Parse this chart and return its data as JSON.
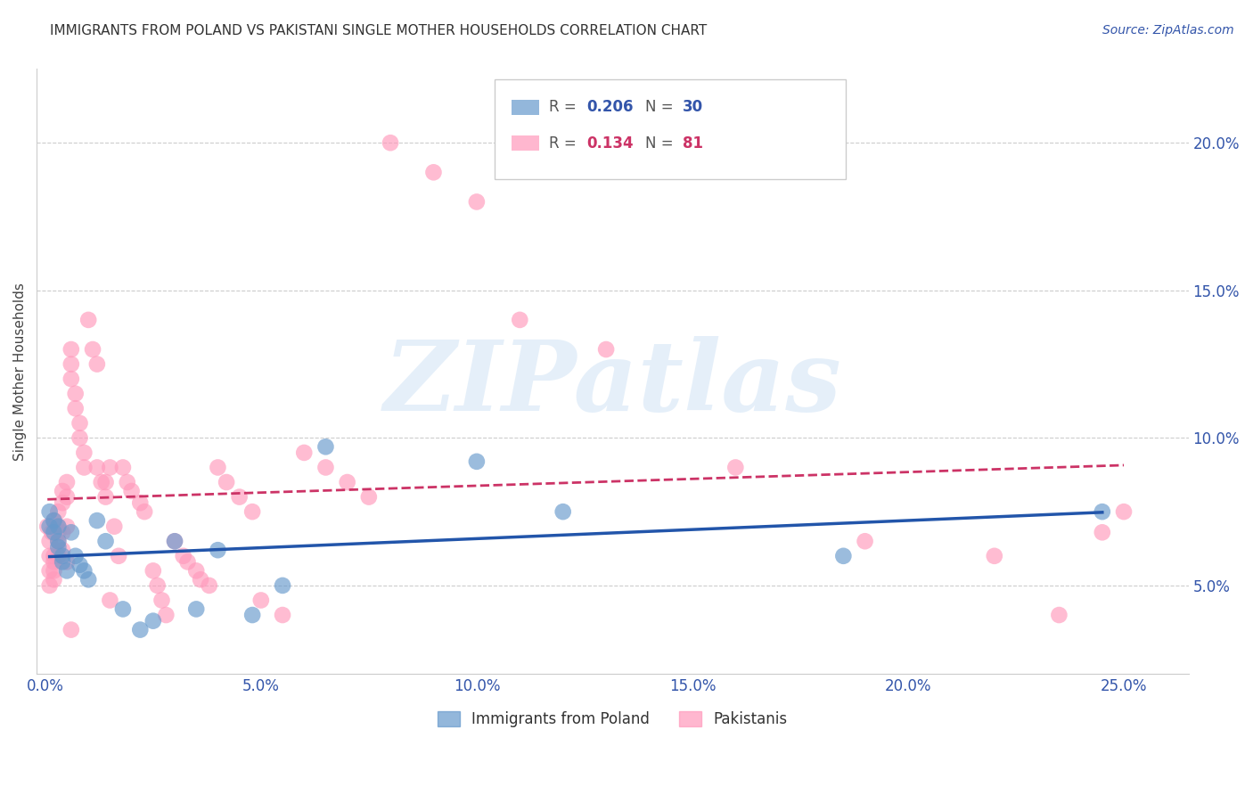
{
  "title": "IMMIGRANTS FROM POLAND VS PAKISTANI SINGLE MOTHER HOUSEHOLDS CORRELATION CHART",
  "source": "Source: ZipAtlas.com",
  "ylabel": "Single Mother Households",
  "xlabel_ticks": [
    0.0,
    0.05,
    0.1,
    0.15,
    0.2,
    0.25
  ],
  "xlabel_labels": [
    "0.0%",
    "5.0%",
    "10.0%",
    "15.0%",
    "20.0%",
    "25.0%"
  ],
  "ylabel_ticks": [
    0.05,
    0.1,
    0.15,
    0.2
  ],
  "ylabel_labels": [
    "5.0%",
    "10.0%",
    "15.0%",
    "20.0%"
  ],
  "xlim": [
    -0.002,
    0.265
  ],
  "ylim": [
    0.02,
    0.225
  ],
  "R_blue": "0.206",
  "N_blue": "30",
  "R_pink": "0.134",
  "N_pink": "81",
  "legend_label_blue": "Immigrants from Poland",
  "legend_label_pink": "Pakistanis",
  "blue_color": "#6699cc",
  "pink_color": "#ff99bb",
  "trendline_blue_color": "#2255aa",
  "trendline_pink_color": "#cc3366",
  "watermark": "ZIPatlas",
  "blue_scatter_x": [
    0.001,
    0.001,
    0.002,
    0.002,
    0.003,
    0.003,
    0.003,
    0.004,
    0.004,
    0.005,
    0.006,
    0.007,
    0.008,
    0.009,
    0.01,
    0.012,
    0.014,
    0.018,
    0.022,
    0.025,
    0.03,
    0.035,
    0.04,
    0.048,
    0.055,
    0.065,
    0.1,
    0.12,
    0.185,
    0.245
  ],
  "blue_scatter_y": [
    0.07,
    0.075,
    0.068,
    0.072,
    0.065,
    0.07,
    0.063,
    0.06,
    0.058,
    0.055,
    0.068,
    0.06,
    0.057,
    0.055,
    0.052,
    0.072,
    0.065,
    0.042,
    0.035,
    0.038,
    0.065,
    0.042,
    0.062,
    0.04,
    0.05,
    0.097,
    0.092,
    0.075,
    0.06,
    0.075
  ],
  "pink_scatter_x": [
    0.0005,
    0.001,
    0.001,
    0.001,
    0.001,
    0.0015,
    0.002,
    0.002,
    0.002,
    0.002,
    0.003,
    0.003,
    0.003,
    0.003,
    0.004,
    0.004,
    0.004,
    0.005,
    0.005,
    0.005,
    0.006,
    0.006,
    0.006,
    0.007,
    0.007,
    0.008,
    0.008,
    0.009,
    0.009,
    0.01,
    0.011,
    0.012,
    0.012,
    0.013,
    0.014,
    0.014,
    0.015,
    0.015,
    0.016,
    0.017,
    0.018,
    0.019,
    0.02,
    0.022,
    0.023,
    0.025,
    0.026,
    0.027,
    0.028,
    0.03,
    0.032,
    0.033,
    0.035,
    0.036,
    0.038,
    0.04,
    0.042,
    0.045,
    0.048,
    0.05,
    0.055,
    0.06,
    0.065,
    0.07,
    0.075,
    0.08,
    0.09,
    0.1,
    0.11,
    0.13,
    0.16,
    0.19,
    0.22,
    0.235,
    0.245,
    0.25,
    0.002,
    0.003,
    0.004,
    0.005,
    0.006
  ],
  "pink_scatter_y": [
    0.07,
    0.065,
    0.06,
    0.055,
    0.05,
    0.068,
    0.06,
    0.058,
    0.055,
    0.052,
    0.075,
    0.07,
    0.065,
    0.06,
    0.082,
    0.078,
    0.068,
    0.085,
    0.08,
    0.07,
    0.13,
    0.125,
    0.12,
    0.115,
    0.11,
    0.105,
    0.1,
    0.095,
    0.09,
    0.14,
    0.13,
    0.125,
    0.09,
    0.085,
    0.08,
    0.085,
    0.09,
    0.045,
    0.07,
    0.06,
    0.09,
    0.085,
    0.082,
    0.078,
    0.075,
    0.055,
    0.05,
    0.045,
    0.04,
    0.065,
    0.06,
    0.058,
    0.055,
    0.052,
    0.05,
    0.09,
    0.085,
    0.08,
    0.075,
    0.045,
    0.04,
    0.095,
    0.09,
    0.085,
    0.08,
    0.2,
    0.19,
    0.18,
    0.14,
    0.13,
    0.09,
    0.065,
    0.06,
    0.04,
    0.068,
    0.075,
    0.072,
    0.068,
    0.062,
    0.058,
    0.035
  ]
}
